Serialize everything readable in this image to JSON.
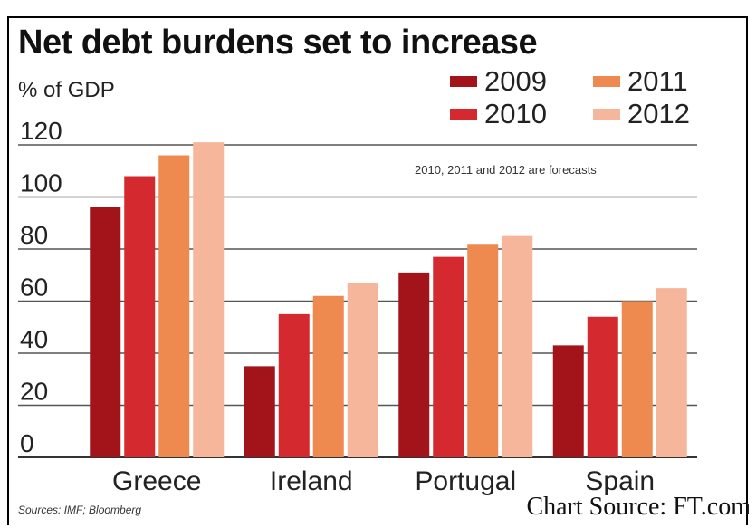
{
  "header_fragment": "",
  "chart_data": {
    "type": "bar",
    "title": "Net debt burdens set to increase",
    "ylabel": "% of GDP",
    "xlabel": "",
    "note": "2010, 2011 and 2012 are forecasts",
    "categories": [
      "Greece",
      "Ireland",
      "Portugal",
      "Spain"
    ],
    "series": [
      {
        "name": "2009",
        "values": [
          96,
          35,
          71,
          43
        ],
        "color": "#a3141a"
      },
      {
        "name": "2010",
        "values": [
          108,
          55,
          77,
          54
        ],
        "color": "#d42a2f"
      },
      {
        "name": "2011",
        "values": [
          116,
          62,
          82,
          60
        ],
        "color": "#ee8a4f"
      },
      {
        "name": "2012",
        "values": [
          121,
          67,
          85,
          65
        ],
        "color": "#f6b69b"
      }
    ],
    "ylim": [
      0,
      120
    ],
    "yticks": [
      0,
      20,
      40,
      60,
      80,
      100,
      120
    ],
    "grid": true,
    "legend_position": "top-right"
  },
  "sources": "Sources: IMF; Bloomberg",
  "credit": "Chart Source: FT.com"
}
